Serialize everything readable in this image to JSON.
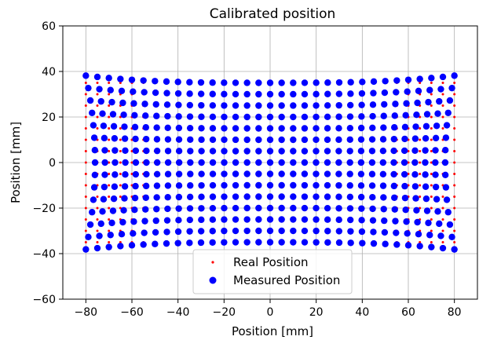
{
  "chart_data": {
    "type": "scatter",
    "title": "Calibrated position",
    "xlabel": "Position [mm]",
    "ylabel": "Position [mm]",
    "xlim": [
      -90,
      90
    ],
    "ylim": [
      -60,
      60
    ],
    "xticks": [
      -80,
      -60,
      -40,
      -20,
      0,
      20,
      40,
      60,
      80
    ],
    "yticks": [
      -60,
      -40,
      -20,
      0,
      20,
      40,
      60
    ],
    "xtick_labels": [
      "−80",
      "−60",
      "−40",
      "−20",
      "0",
      "20",
      "40",
      "60",
      "80"
    ],
    "ytick_labels": [
      "−60",
      "−40",
      "−20",
      "0",
      "20",
      "40",
      "60"
    ],
    "grid": true,
    "legend_position": "lower-center",
    "series": [
      {
        "name": "Real Position",
        "color": "#ff0000",
        "marker": "small-dot",
        "grid": {
          "x_start": -80,
          "x_step": 5,
          "x_count": 33,
          "y_start": -35,
          "y_step": 5,
          "y_count": 15
        }
      },
      {
        "name": "Measured Position",
        "color": "#0000ff",
        "marker": "large-dot",
        "distortion": {
          "x_bulge": 0.05,
          "y_pincushion": 0.09,
          "reference_mm": 80
        }
      }
    ]
  }
}
